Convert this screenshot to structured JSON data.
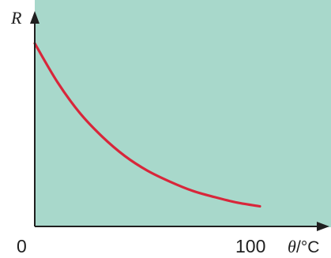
{
  "chart_data": {
    "type": "line",
    "title": "",
    "xlabel_symbol": "θ",
    "xlabel_unit": "/°C",
    "ylabel": "R",
    "x_ticks": [
      {
        "value": 0,
        "label": "0"
      },
      {
        "value": 100,
        "label": "100"
      }
    ],
    "xlim": [
      0,
      118
    ],
    "ylim": [
      0,
      100
    ],
    "grid": false,
    "legend": "none",
    "colors": {
      "background": "#a8d8cb",
      "curve": "#d8263a",
      "axis": "#1f1f1f"
    },
    "series": [
      {
        "x": [
          0,
          10,
          20,
          30,
          40,
          50,
          60,
          70,
          80,
          90,
          100
        ],
        "y": [
          100,
          79,
          62,
          49,
          38.5,
          30.5,
          24.5,
          19.5,
          16,
          13,
          11
        ]
      }
    ]
  }
}
